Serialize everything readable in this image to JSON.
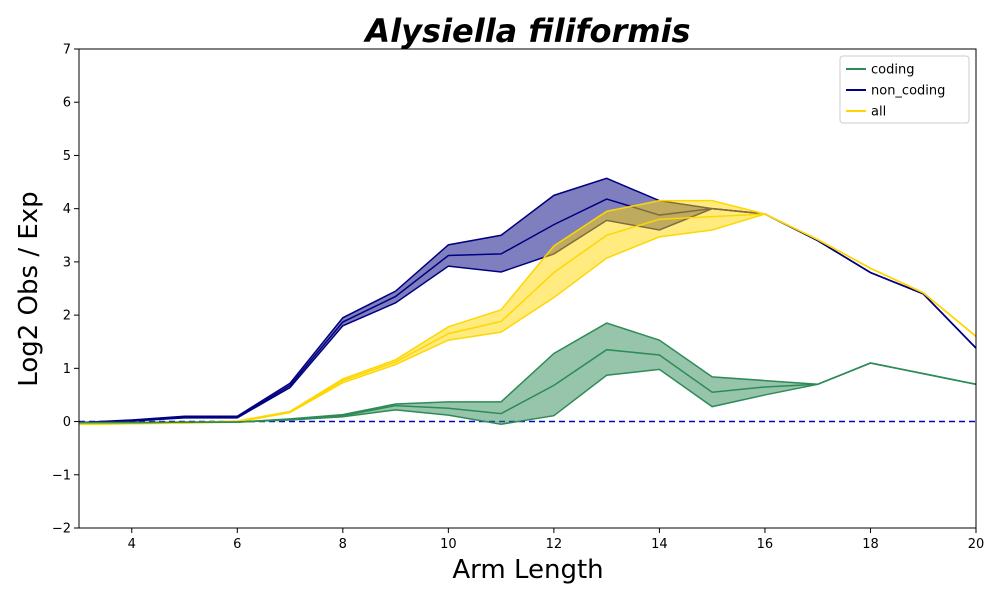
{
  "chart_data": {
    "type": "line",
    "title": "Alysiella filiformis",
    "xlabel": "Arm Length",
    "ylabel": "Log2 Obs / Exp",
    "xlim": [
      3,
      20
    ],
    "ylim": [
      -2,
      7
    ],
    "xticks": [
      4,
      6,
      8,
      10,
      12,
      14,
      16,
      18,
      20
    ],
    "yticks": [
      -2,
      -1,
      0,
      1,
      2,
      3,
      4,
      5,
      6,
      7
    ],
    "ytick_labels": [
      "−2",
      "−1",
      "0",
      "1",
      "2",
      "3",
      "4",
      "5",
      "6",
      "7"
    ],
    "grid": false,
    "legend_position": "top-right",
    "reference_line": {
      "y": 0,
      "style": "dashed",
      "color": "#0000cc"
    },
    "x": [
      3,
      4,
      5,
      6,
      7,
      8,
      9,
      10,
      11,
      12,
      13,
      14,
      15,
      16,
      17,
      18,
      19,
      20
    ],
    "series": [
      {
        "name": "non_coding",
        "color": "#000080",
        "fill_color": "#000080",
        "mean": [
          -0.02,
          0.02,
          0.08,
          0.08,
          0.68,
          1.87,
          2.35,
          3.12,
          3.15,
          3.7,
          4.18,
          3.88,
          4.0,
          3.9,
          3.4,
          2.8,
          2.4,
          1.38
        ],
        "upper": [
          -0.02,
          0.03,
          0.1,
          0.1,
          0.72,
          1.95,
          2.45,
          3.32,
          3.5,
          4.25,
          4.57,
          4.15,
          4.0,
          3.9,
          3.4,
          2.8,
          2.4,
          1.38
        ],
        "lower": [
          -0.02,
          0.01,
          0.07,
          0.07,
          0.64,
          1.8,
          2.23,
          2.92,
          2.81,
          3.15,
          3.78,
          3.6,
          4.0,
          3.9,
          3.4,
          2.8,
          2.4,
          1.38
        ]
      },
      {
        "name": "all",
        "color": "#ffd700",
        "fill_color": "#ffd700",
        "mean": [
          -0.05,
          -0.04,
          -0.03,
          0.0,
          0.18,
          0.77,
          1.12,
          1.65,
          1.88,
          2.8,
          3.5,
          3.8,
          3.85,
          3.9,
          3.42,
          2.88,
          2.42,
          1.6
        ],
        "upper": [
          -0.05,
          -0.04,
          -0.02,
          0.01,
          0.19,
          0.8,
          1.16,
          1.78,
          2.1,
          3.3,
          3.95,
          4.15,
          4.15,
          3.9,
          3.42,
          2.88,
          2.42,
          1.6
        ],
        "lower": [
          -0.05,
          -0.04,
          -0.03,
          -0.01,
          0.17,
          0.73,
          1.07,
          1.53,
          1.68,
          2.33,
          3.07,
          3.47,
          3.6,
          3.9,
          3.42,
          2.88,
          2.42,
          1.6
        ]
      },
      {
        "name": "coding",
        "color": "#2e8b57",
        "fill_color": "#2e8b57",
        "mean": [
          -0.02,
          -0.02,
          -0.01,
          -0.01,
          0.04,
          0.11,
          0.3,
          0.25,
          0.15,
          0.68,
          1.35,
          1.25,
          0.55,
          0.65,
          0.7,
          1.1,
          0.9,
          0.7
        ],
        "upper": [
          -0.02,
          -0.02,
          -0.01,
          -0.01,
          0.05,
          0.13,
          0.33,
          0.37,
          0.37,
          1.28,
          1.85,
          1.53,
          0.84,
          0.77,
          0.7,
          1.1,
          0.9,
          0.7
        ],
        "lower": [
          -0.02,
          -0.02,
          -0.01,
          -0.01,
          0.03,
          0.09,
          0.22,
          0.12,
          -0.05,
          0.11,
          0.87,
          0.98,
          0.28,
          0.5,
          0.7,
          1.1,
          0.9,
          0.7
        ]
      }
    ],
    "legend_order": [
      "coding",
      "non_coding",
      "all"
    ]
  }
}
